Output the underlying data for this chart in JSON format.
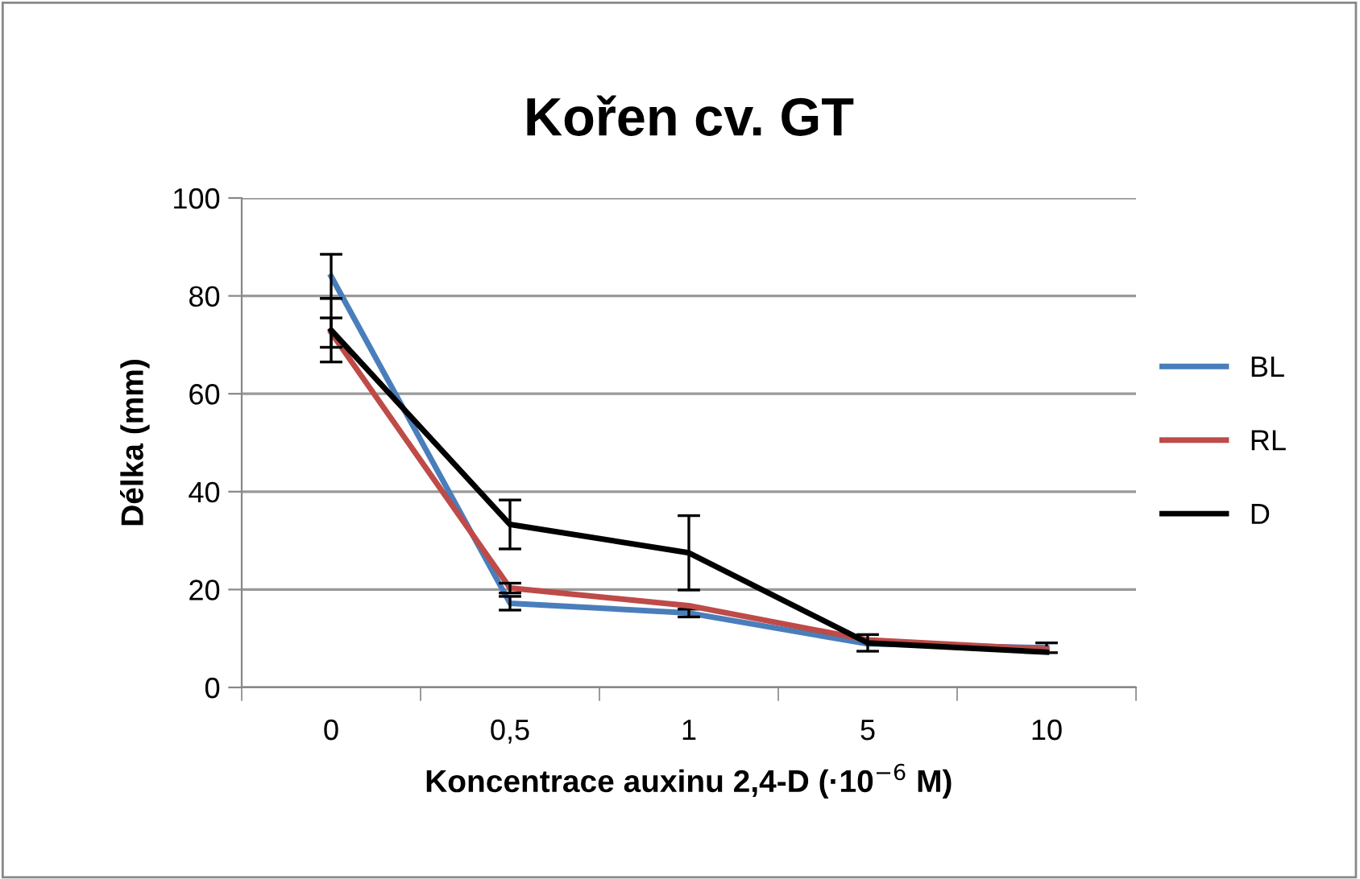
{
  "chart_data": {
    "type": "line",
    "title": "Kořen cv. GT",
    "xlabel": "Koncentrace auxinu 2,4-D (·10$^{−6}$ M)",
    "ylabel": "Délka (mm)",
    "categories": [
      "0",
      "0,5",
      "1",
      "5",
      "10"
    ],
    "series": [
      {
        "name": "BL",
        "color": "#4a7ebb",
        "values": [
          84,
          17.2,
          15.2,
          8.9,
          8.1
        ],
        "errors": [
          4.5,
          1.4,
          0.8,
          null,
          1
        ]
      },
      {
        "name": "RL",
        "color": "#be4b48",
        "values": [
          72.5,
          20.3,
          16.7,
          9.7,
          7.8
        ],
        "errors": [
          3,
          1,
          null,
          null,
          null
        ]
      },
      {
        "name": "D",
        "color": "#000000",
        "values": [
          73,
          33.3,
          27.5,
          9.1,
          7.2
        ],
        "errors": [
          6.5,
          5,
          7.6,
          1.7,
          null
        ]
      }
    ],
    "ylim": [
      0,
      100
    ],
    "yticks": [
      0,
      20,
      40,
      60,
      80,
      100
    ],
    "grid": "y",
    "legend": "right",
    "marker": "none"
  }
}
